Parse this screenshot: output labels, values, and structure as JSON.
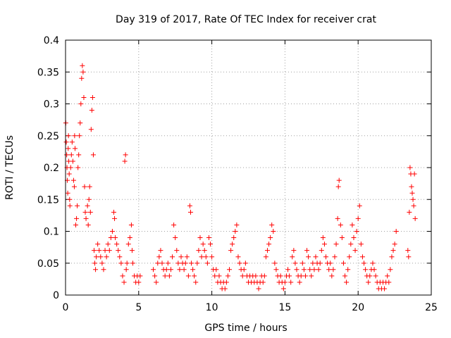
{
  "chart_data": {
    "type": "scatter",
    "title": "Day 319 of 2017, Rate Of TEC Index for receiver crat",
    "xlabel": "GPS time / hours",
    "ylabel": "ROTI / TECUs",
    "xlim": [
      0,
      25
    ],
    "ylim": [
      0,
      0.4
    ],
    "x_ticks": [
      0,
      5,
      10,
      15,
      20,
      25
    ],
    "y_ticks": [
      0,
      0.05,
      0.1,
      0.15,
      0.2,
      0.25,
      0.3,
      0.35,
      0.4
    ],
    "x_tick_labels": [
      "0",
      "5",
      "10",
      "15",
      "20",
      "25"
    ],
    "y_tick_labels": [
      "0",
      "0.05",
      "0.1",
      "0.15",
      "0.2",
      "0.25",
      "0.3",
      "0.35",
      "0.4"
    ],
    "grid": true,
    "marker": "plus",
    "color": "#ff0000",
    "points": [
      [
        0.02,
        0.27
      ],
      [
        0.05,
        0.24
      ],
      [
        0.08,
        0.22
      ],
      [
        0.1,
        0.2
      ],
      [
        0.12,
        0.18
      ],
      [
        0.15,
        0.16
      ],
      [
        0.18,
        0.23
      ],
      [
        0.2,
        0.25
      ],
      [
        0.22,
        0.21
      ],
      [
        0.25,
        0.19
      ],
      [
        0.28,
        0.15
      ],
      [
        0.3,
        0.14
      ],
      [
        0.35,
        0.2
      ],
      [
        0.4,
        0.22
      ],
      [
        0.45,
        0.24
      ],
      [
        0.5,
        0.21
      ],
      [
        0.55,
        0.18
      ],
      [
        0.6,
        0.17
      ],
      [
        0.62,
        0.25
      ],
      [
        0.65,
        0.23
      ],
      [
        0.7,
        0.11
      ],
      [
        0.75,
        0.12
      ],
      [
        0.8,
        0.14
      ],
      [
        0.85,
        0.2
      ],
      [
        0.9,
        0.22
      ],
      [
        0.95,
        0.25
      ],
      [
        1.0,
        0.27
      ],
      [
        1.05,
        0.3
      ],
      [
        1.1,
        0.34
      ],
      [
        1.15,
        0.36
      ],
      [
        1.2,
        0.35
      ],
      [
        1.25,
        0.31
      ],
      [
        1.3,
        0.17
      ],
      [
        1.35,
        0.13
      ],
      [
        1.4,
        0.12
      ],
      [
        1.5,
        0.14
      ],
      [
        1.55,
        0.11
      ],
      [
        1.6,
        0.15
      ],
      [
        1.65,
        0.17
      ],
      [
        1.7,
        0.13
      ],
      [
        1.75,
        0.26
      ],
      [
        1.8,
        0.29
      ],
      [
        1.85,
        0.31
      ],
      [
        1.9,
        0.22
      ],
      [
        1.95,
        0.07
      ],
      [
        2.0,
        0.05
      ],
      [
        2.05,
        0.04
      ],
      [
        2.1,
        0.06
      ],
      [
        2.2,
        0.08
      ],
      [
        2.3,
        0.07
      ],
      [
        2.4,
        0.06
      ],
      [
        2.5,
        0.05
      ],
      [
        2.6,
        0.04
      ],
      [
        2.7,
        0.07
      ],
      [
        2.8,
        0.06
      ],
      [
        2.9,
        0.08
      ],
      [
        3.0,
        0.07
      ],
      [
        3.1,
        0.09
      ],
      [
        3.2,
        0.1
      ],
      [
        3.3,
        0.13
      ],
      [
        3.35,
        0.12
      ],
      [
        3.4,
        0.09
      ],
      [
        3.5,
        0.08
      ],
      [
        3.6,
        0.07
      ],
      [
        3.7,
        0.06
      ],
      [
        3.8,
        0.05
      ],
      [
        3.9,
        0.03
      ],
      [
        4.0,
        0.02
      ],
      [
        4.05,
        0.21
      ],
      [
        4.1,
        0.22
      ],
      [
        4.15,
        0.04
      ],
      [
        4.2,
        0.05
      ],
      [
        4.3,
        0.08
      ],
      [
        4.4,
        0.09
      ],
      [
        4.5,
        0.11
      ],
      [
        4.55,
        0.07
      ],
      [
        4.6,
        0.05
      ],
      [
        4.7,
        0.03
      ],
      [
        4.8,
        0.02
      ],
      [
        4.9,
        0.03
      ],
      [
        5.0,
        0.02
      ],
      [
        5.1,
        0.03
      ],
      [
        6.0,
        0.04
      ],
      [
        6.1,
        0.03
      ],
      [
        6.2,
        0.02
      ],
      [
        6.3,
        0.05
      ],
      [
        6.4,
        0.06
      ],
      [
        6.5,
        0.07
      ],
      [
        6.6,
        0.05
      ],
      [
        6.7,
        0.04
      ],
      [
        6.8,
        0.03
      ],
      [
        6.9,
        0.04
      ],
      [
        7.0,
        0.05
      ],
      [
        7.1,
        0.03
      ],
      [
        7.2,
        0.04
      ],
      [
        7.3,
        0.06
      ],
      [
        7.4,
        0.11
      ],
      [
        7.5,
        0.09
      ],
      [
        7.6,
        0.07
      ],
      [
        7.7,
        0.05
      ],
      [
        7.8,
        0.04
      ],
      [
        7.9,
        0.06
      ],
      [
        8.0,
        0.05
      ],
      [
        8.1,
        0.04
      ],
      [
        8.2,
        0.05
      ],
      [
        8.3,
        0.06
      ],
      [
        8.4,
        0.03
      ],
      [
        8.5,
        0.14
      ],
      [
        8.55,
        0.13
      ],
      [
        8.6,
        0.05
      ],
      [
        8.7,
        0.04
      ],
      [
        8.8,
        0.03
      ],
      [
        8.9,
        0.02
      ],
      [
        9.0,
        0.05
      ],
      [
        9.1,
        0.07
      ],
      [
        9.2,
        0.09
      ],
      [
        9.3,
        0.06
      ],
      [
        9.4,
        0.08
      ],
      [
        9.5,
        0.07
      ],
      [
        9.6,
        0.06
      ],
      [
        9.7,
        0.05
      ],
      [
        9.8,
        0.09
      ],
      [
        9.9,
        0.08
      ],
      [
        10.0,
        0.06
      ],
      [
        10.1,
        0.04
      ],
      [
        10.2,
        0.03
      ],
      [
        10.3,
        0.04
      ],
      [
        10.4,
        0.02
      ],
      [
        10.5,
        0.03
      ],
      [
        10.6,
        0.02
      ],
      [
        10.7,
        0.01
      ],
      [
        10.8,
        0.02
      ],
      [
        10.9,
        0.01
      ],
      [
        11.0,
        0.02
      ],
      [
        11.1,
        0.03
      ],
      [
        11.2,
        0.04
      ],
      [
        11.3,
        0.07
      ],
      [
        11.4,
        0.08
      ],
      [
        11.5,
        0.09
      ],
      [
        11.6,
        0.1
      ],
      [
        11.7,
        0.11
      ],
      [
        11.8,
        0.06
      ],
      [
        11.9,
        0.05
      ],
      [
        12.0,
        0.04
      ],
      [
        12.1,
        0.03
      ],
      [
        12.2,
        0.04
      ],
      [
        12.3,
        0.05
      ],
      [
        12.4,
        0.03
      ],
      [
        12.5,
        0.02
      ],
      [
        12.6,
        0.03
      ],
      [
        12.7,
        0.02
      ],
      [
        12.8,
        0.03
      ],
      [
        12.9,
        0.02
      ],
      [
        13.0,
        0.03
      ],
      [
        13.1,
        0.02
      ],
      [
        13.2,
        0.01
      ],
      [
        13.3,
        0.02
      ],
      [
        13.4,
        0.03
      ],
      [
        13.5,
        0.02
      ],
      [
        13.6,
        0.03
      ],
      [
        13.7,
        0.06
      ],
      [
        13.8,
        0.07
      ],
      [
        13.9,
        0.08
      ],
      [
        14.0,
        0.09
      ],
      [
        14.1,
        0.11
      ],
      [
        14.2,
        0.1
      ],
      [
        14.3,
        0.05
      ],
      [
        14.4,
        0.04
      ],
      [
        14.5,
        0.03
      ],
      [
        14.6,
        0.02
      ],
      [
        14.7,
        0.03
      ],
      [
        14.8,
        0.02
      ],
      [
        14.9,
        0.01
      ],
      [
        15.0,
        0.02
      ],
      [
        15.1,
        0.03
      ],
      [
        15.2,
        0.04
      ],
      [
        15.3,
        0.03
      ],
      [
        15.4,
        0.02
      ],
      [
        15.5,
        0.06
      ],
      [
        15.6,
        0.07
      ],
      [
        15.7,
        0.05
      ],
      [
        15.8,
        0.04
      ],
      [
        15.9,
        0.03
      ],
      [
        16.0,
        0.02
      ],
      [
        16.1,
        0.03
      ],
      [
        16.2,
        0.05
      ],
      [
        16.3,
        0.04
      ],
      [
        16.4,
        0.03
      ],
      [
        16.5,
        0.07
      ],
      [
        16.6,
        0.06
      ],
      [
        16.7,
        0.04
      ],
      [
        16.8,
        0.03
      ],
      [
        16.9,
        0.05
      ],
      [
        17.0,
        0.04
      ],
      [
        17.1,
        0.06
      ],
      [
        17.2,
        0.05
      ],
      [
        17.3,
        0.04
      ],
      [
        17.4,
        0.05
      ],
      [
        17.5,
        0.07
      ],
      [
        17.6,
        0.09
      ],
      [
        17.7,
        0.08
      ],
      [
        17.8,
        0.06
      ],
      [
        17.9,
        0.05
      ],
      [
        18.0,
        0.04
      ],
      [
        18.1,
        0.05
      ],
      [
        18.2,
        0.03
      ],
      [
        18.3,
        0.04
      ],
      [
        18.4,
        0.06
      ],
      [
        18.5,
        0.08
      ],
      [
        18.6,
        0.12
      ],
      [
        18.65,
        0.17
      ],
      [
        18.7,
        0.18
      ],
      [
        18.8,
        0.11
      ],
      [
        18.9,
        0.09
      ],
      [
        19.0,
        0.05
      ],
      [
        19.1,
        0.03
      ],
      [
        19.2,
        0.02
      ],
      [
        19.3,
        0.04
      ],
      [
        19.4,
        0.06
      ],
      [
        19.5,
        0.08
      ],
      [
        19.6,
        0.11
      ],
      [
        19.7,
        0.09
      ],
      [
        19.8,
        0.07
      ],
      [
        19.9,
        0.1
      ],
      [
        20.0,
        0.12
      ],
      [
        20.1,
        0.14
      ],
      [
        20.2,
        0.08
      ],
      [
        20.3,
        0.06
      ],
      [
        20.4,
        0.05
      ],
      [
        20.5,
        0.04
      ],
      [
        20.6,
        0.03
      ],
      [
        20.7,
        0.02
      ],
      [
        20.8,
        0.03
      ],
      [
        20.9,
        0.04
      ],
      [
        21.0,
        0.05
      ],
      [
        21.1,
        0.04
      ],
      [
        21.2,
        0.03
      ],
      [
        21.3,
        0.02
      ],
      [
        21.4,
        0.01
      ],
      [
        21.5,
        0.02
      ],
      [
        21.6,
        0.01
      ],
      [
        21.7,
        0.02
      ],
      [
        21.8,
        0.01
      ],
      [
        21.9,
        0.02
      ],
      [
        22.0,
        0.03
      ],
      [
        22.1,
        0.02
      ],
      [
        22.2,
        0.04
      ],
      [
        22.3,
        0.06
      ],
      [
        22.4,
        0.07
      ],
      [
        22.5,
        0.08
      ],
      [
        22.6,
        0.1
      ],
      [
        23.4,
        0.07
      ],
      [
        23.45,
        0.06
      ],
      [
        23.5,
        0.13
      ],
      [
        23.55,
        0.2
      ],
      [
        23.6,
        0.19
      ],
      [
        23.65,
        0.17
      ],
      [
        23.7,
        0.16
      ],
      [
        23.75,
        0.15
      ],
      [
        23.8,
        0.14
      ],
      [
        23.85,
        0.19
      ],
      [
        23.9,
        0.12
      ]
    ]
  }
}
